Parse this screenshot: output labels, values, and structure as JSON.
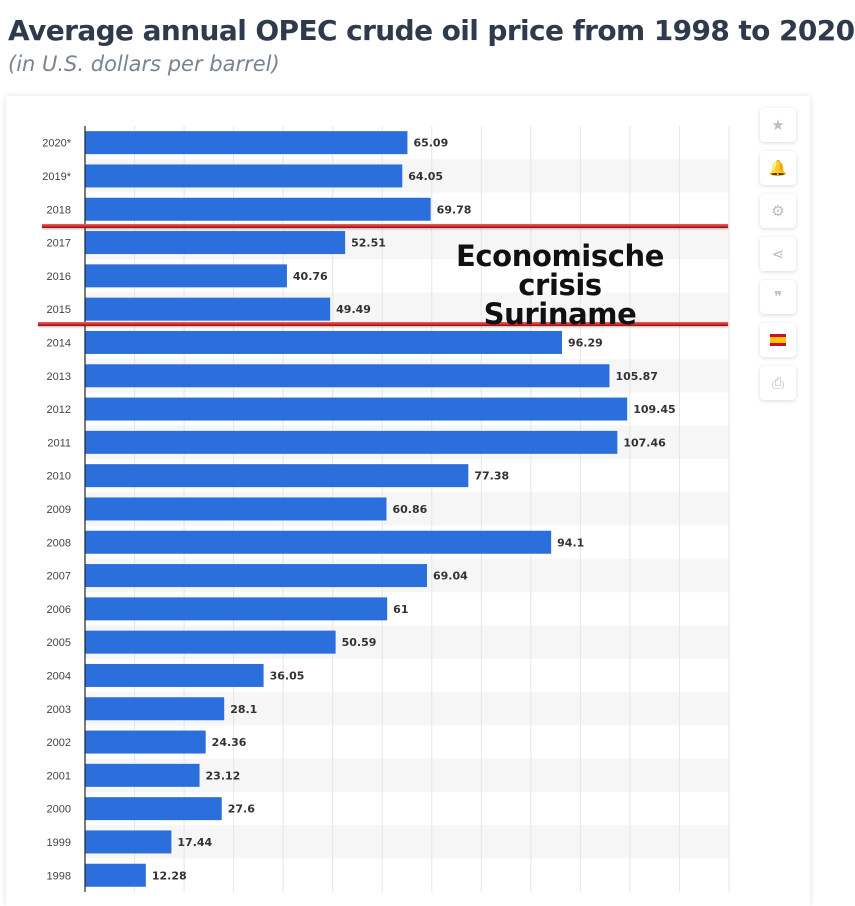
{
  "header": {
    "title": "Average annual OPEC crude oil price from 1998 to 2020",
    "subtitle": "(in U.S. dollars per barrel)"
  },
  "annotation": {
    "line1": "Economische crisis",
    "line2": "Suriname"
  },
  "toolbar": {
    "buttons": [
      {
        "name": "favorite-button",
        "icon": "star-icon",
        "glyph": "★"
      },
      {
        "name": "notification-button",
        "icon": "bell-icon",
        "glyph": "🔔"
      },
      {
        "name": "settings-button",
        "icon": "gear-icon",
        "glyph": "⚙"
      },
      {
        "name": "share-button",
        "icon": "share-icon",
        "glyph": "⋖"
      },
      {
        "name": "cite-button",
        "icon": "quote-icon",
        "glyph": "❞"
      },
      {
        "name": "language-button",
        "icon": "spain-flag-icon",
        "glyph": ""
      },
      {
        "name": "print-button",
        "icon": "printer-icon",
        "glyph": "⎙"
      }
    ]
  },
  "colors": {
    "bar": "#2a6fdb",
    "value_label": "#333333",
    "category_label": "#444444",
    "stripe": "#f6f6f6",
    "grid": "#e6e6e6",
    "axis": "#222222",
    "highlight_line": "#cc1111"
  },
  "chart_data": {
    "type": "bar",
    "orientation": "horizontal",
    "categories": [
      "2020*",
      "2019*",
      "2018",
      "2017",
      "2016",
      "2015",
      "2014",
      "2013",
      "2012",
      "2011",
      "2010",
      "2009",
      "2008",
      "2007",
      "2006",
      "2005",
      "2004",
      "2003",
      "2002",
      "2001",
      "2000",
      "1999",
      "1998"
    ],
    "values": [
      65.09,
      64.05,
      69.78,
      52.51,
      40.76,
      49.49,
      96.29,
      105.87,
      109.45,
      107.46,
      77.38,
      60.86,
      94.1,
      69.04,
      61,
      50.59,
      36.05,
      28.1,
      24.36,
      23.12,
      27.6,
      17.44,
      12.28
    ],
    "value_labels": [
      "65.09",
      "64.05",
      "69.78",
      "52.51",
      "40.76",
      "49.49",
      "96.29",
      "105.87",
      "109.45",
      "107.46",
      "77.38",
      "60.86",
      "94.1",
      "69.04",
      "61",
      "50.59",
      "36.05",
      "28.1",
      "24.36",
      "23.12",
      "27.6",
      "17.44",
      "12.28"
    ],
    "xlim": [
      0,
      130
    ],
    "grid": true,
    "highlight_range": [
      "2017",
      "2015"
    ]
  }
}
